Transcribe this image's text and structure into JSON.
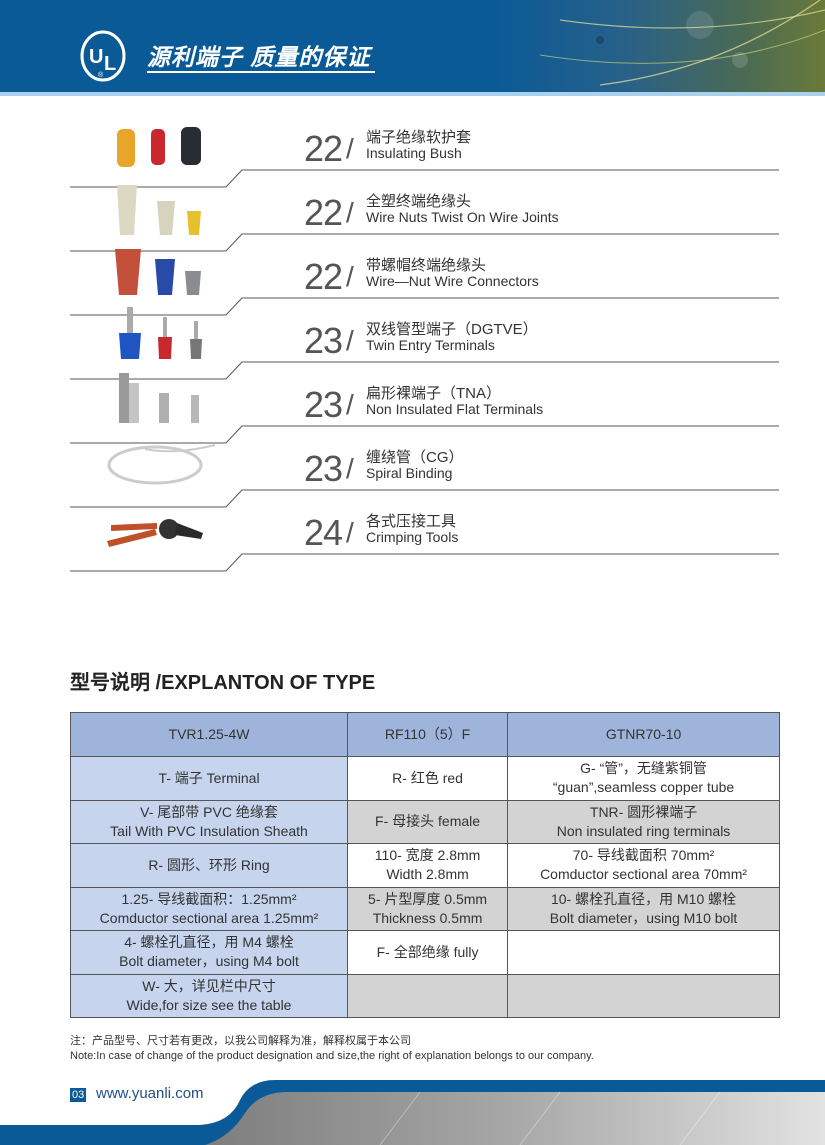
{
  "header": {
    "slogan": "源利端子  质量的保证",
    "logo_text": "UL",
    "logo_mark": "®"
  },
  "products": [
    {
      "page": "22",
      "cn": "端子绝缘软护套",
      "en": "Insulating Bush",
      "icon": "insulating-bush"
    },
    {
      "page": "22",
      "cn": "全塑终端绝缘头",
      "en": "Wire Nuts Twist On Wire Joints",
      "icon": "wire-nut"
    },
    {
      "page": "22",
      "cn": "带螺帽终端绝缘头",
      "en": "Wire—Nut Wire Connectors",
      "icon": "wire-nut-connector"
    },
    {
      "page": "23",
      "cn": "双线管型端子（DGTVE）",
      "en": "Twin Entry Terminals",
      "icon": "twin-entry-terminal"
    },
    {
      "page": "23",
      "cn": "扁形裸端子（TNA）",
      "en": "Non Insulated Flat Terminals",
      "icon": "flat-terminal"
    },
    {
      "page": "23",
      "cn": "缠绕管（CG）",
      "en": "Spiral Binding",
      "icon": "spiral-binding"
    },
    {
      "page": "24",
      "cn": "各式压接工具",
      "en": "Crimping Tools",
      "icon": "crimping-tool"
    }
  ],
  "slash": "/",
  "explanation": {
    "heading": "型号说明 /EXPLANTON OF TYPE",
    "headers": [
      "TVR1.25-4W",
      "RF110（5）F",
      "GTNR70-10"
    ],
    "rows": [
      [
        [
          "T- 端子 Terminal"
        ],
        [
          "R- 红色 red"
        ],
        [
          "G- “管”，无缝紫铜管",
          "“guan”,seamless copper tube"
        ]
      ],
      [
        [
          "V- 尾部带 PVC 绝缘套",
          "Tail With PVC Insulation Sheath"
        ],
        [
          "F- 母接头 female"
        ],
        [
          "TNR- 圆形裸端子",
          "Non insulated ring terminals"
        ]
      ],
      [
        [
          "R- 圆形、环形 Ring"
        ],
        [
          "110- 宽度 2.8mm",
          "Width 2.8mm"
        ],
        [
          "70- 导线截面积 70mm²",
          "Comductor sectional area 70mm²"
        ]
      ],
      [
        [
          "1.25- 导线截面积：1.25mm²",
          "Comductor sectional area 1.25mm²"
        ],
        [
          "5- 片型厚度 0.5mm",
          "Thickness 0.5mm"
        ],
        [
          "10- 螺栓孔直径，用 M10 螺栓",
          "Bolt diameter，using M10 bolt"
        ]
      ],
      [
        [
          "4- 螺栓孔直径，用 M4 螺栓",
          "Bolt diameter，using M4 bolt"
        ],
        [
          "F- 全部绝缘 fully"
        ],
        [
          ""
        ]
      ],
      [
        [
          "W- 大，详见栏中尺寸",
          "Wide,for size see the table"
        ],
        [
          ""
        ],
        [
          ""
        ]
      ]
    ]
  },
  "notes": {
    "cn": "注：产品型号、尺寸若有更改，以我公司解释为准，解释权属于本公司",
    "en": "Note:In case of change of the product designation and size,the right of explanation belongs to our company."
  },
  "footer": {
    "page_number": "03",
    "url": "www.yuanli.com"
  },
  "colors": {
    "brand_blue": "#0a5a97",
    "header_cell": "#9fb4da",
    "first_col": "#c6d4ed",
    "gray_cell": "#d3d3d3"
  }
}
